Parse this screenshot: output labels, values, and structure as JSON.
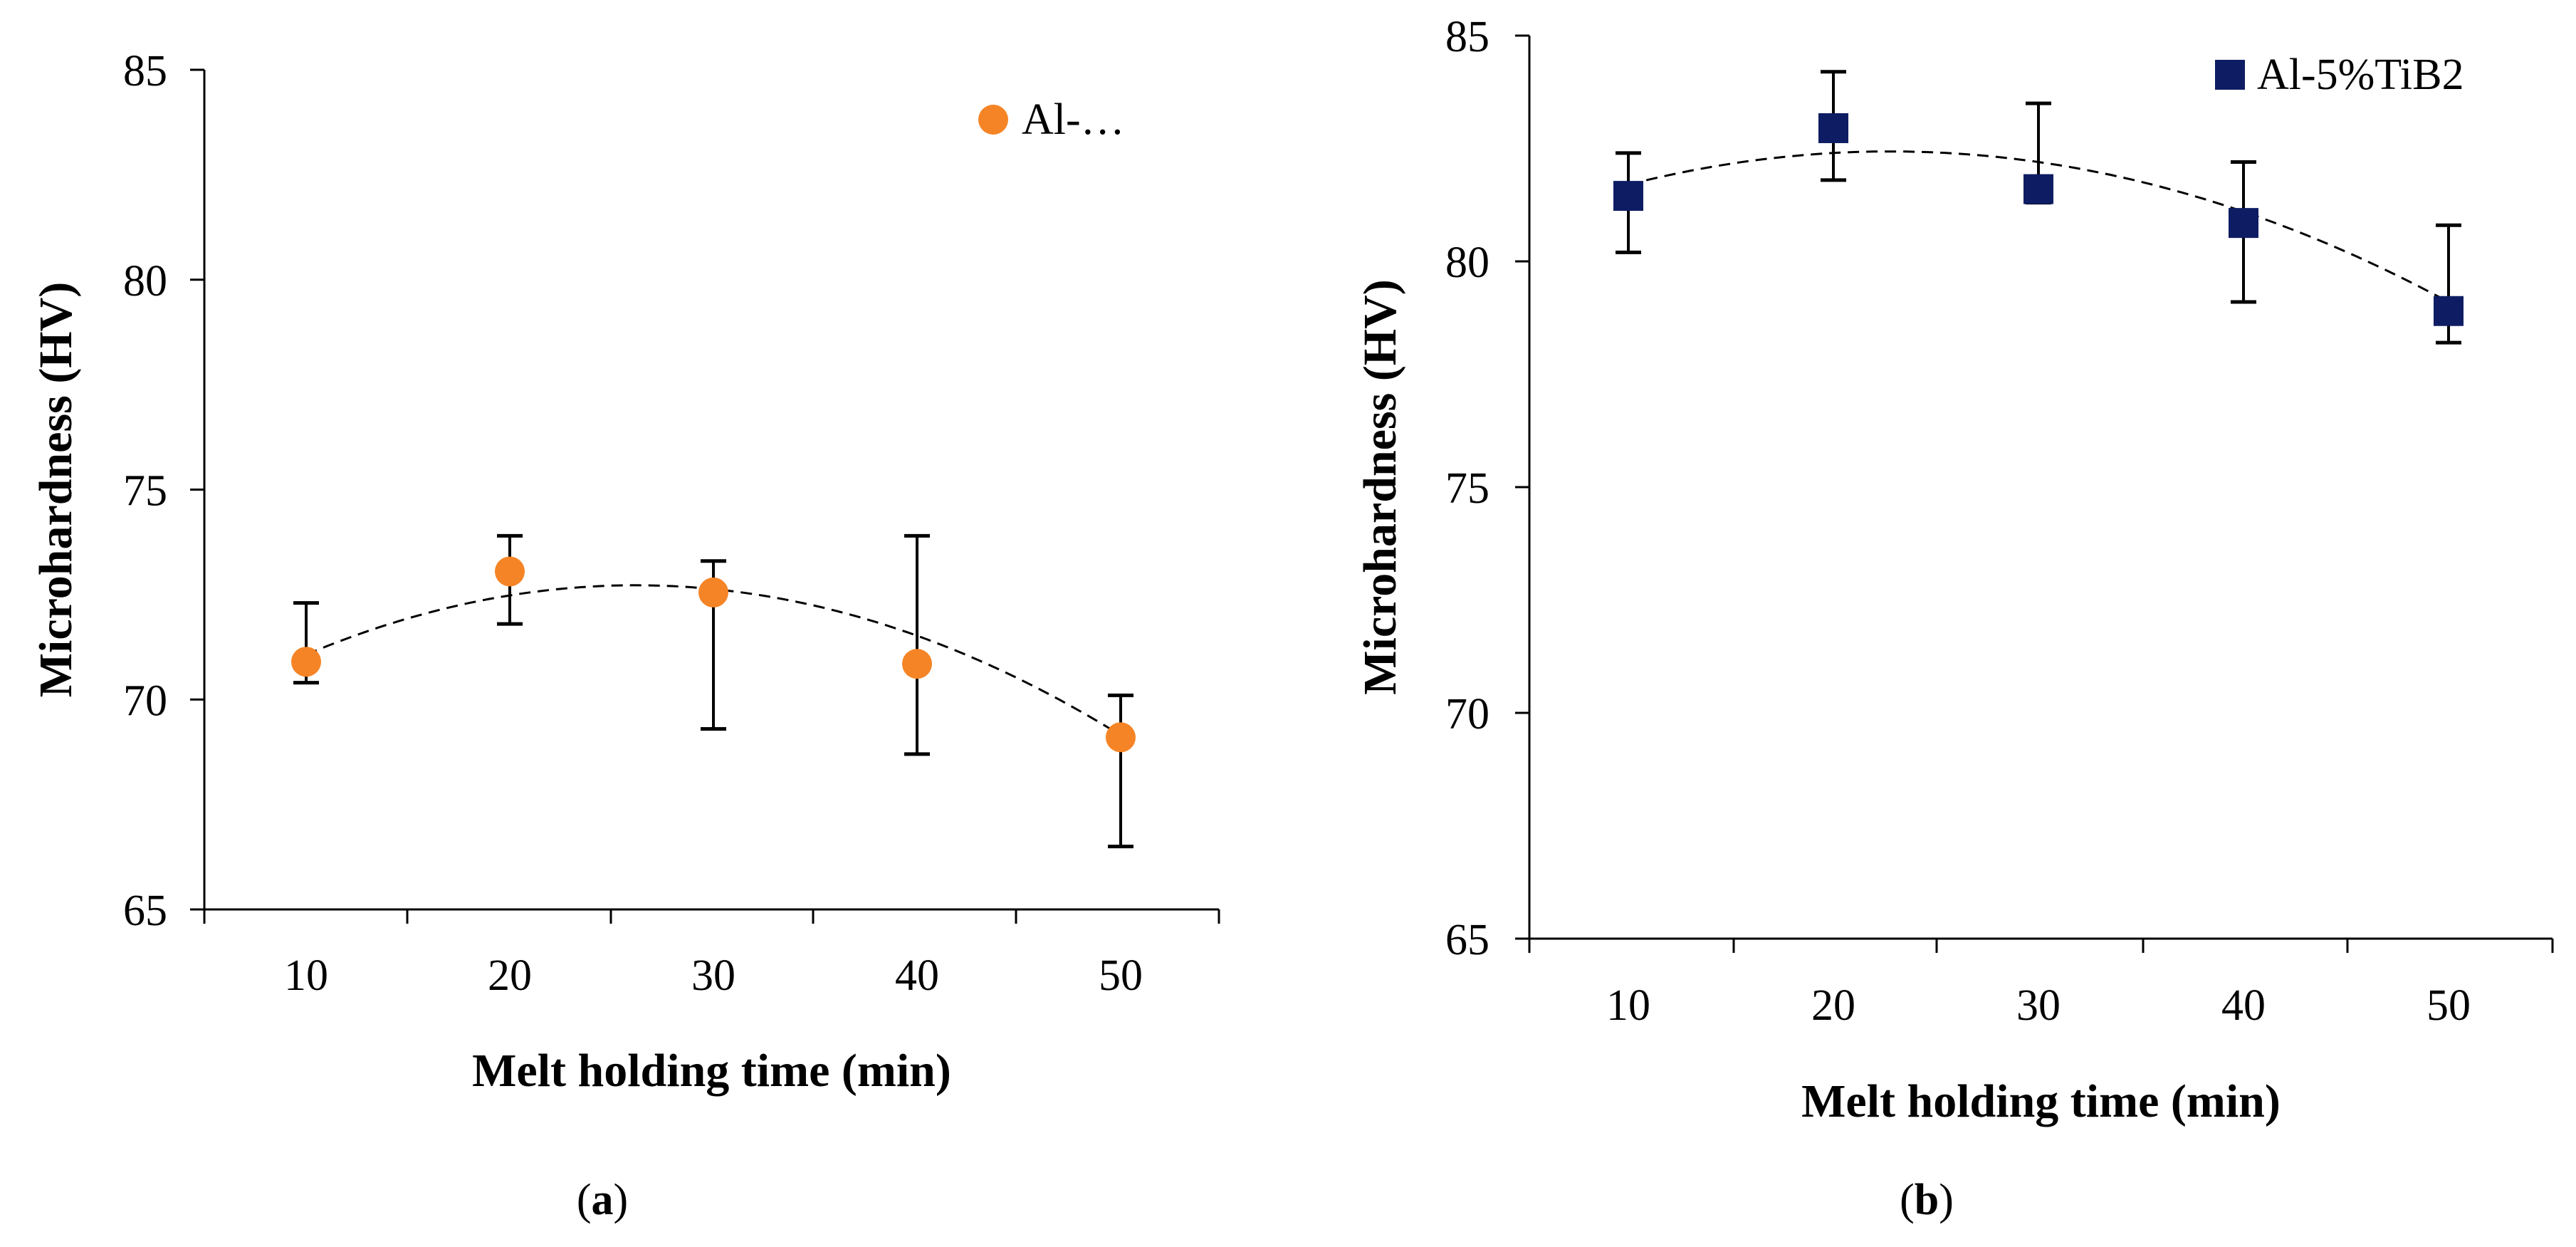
{
  "figure": {
    "panels": [
      "a",
      "b"
    ]
  },
  "chart_data": [
    {
      "type": "scatter",
      "panel_label": "a",
      "caption_open": "(",
      "caption_close": ")",
      "xlabel": "Melt holding time (min)",
      "ylabel": "Microhardness (HV)",
      "x": [
        10,
        20,
        30,
        40,
        50
      ],
      "x_categories": [
        "10",
        "20",
        "30",
        "40",
        "50"
      ],
      "ylim": [
        65,
        85
      ],
      "yticks": [
        65,
        70,
        75,
        80,
        85
      ],
      "legend_position": "top-right",
      "grid": false,
      "series": [
        {
          "name": "Al-…",
          "marker": "circle",
          "color": "#f58426",
          "values": [
            70.9,
            73.05,
            72.55,
            70.85,
            69.1
          ],
          "err_low": [
            70.4,
            71.8,
            69.3,
            68.7,
            66.5
          ],
          "err_high": [
            72.3,
            73.9,
            73.3,
            73.9,
            70.1
          ]
        }
      ],
      "trendline": {
        "style": "dashed",
        "kind": "polynomial-2",
        "coeffs": [
          68.4,
          0.33,
          -0.0063
        ]
      }
    },
    {
      "type": "scatter",
      "panel_label": "b",
      "caption_open": "(",
      "caption_close": ")",
      "xlabel": "Melt holding time (min)",
      "ylabel": "Microhardness (HV)",
      "x": [
        10,
        20,
        30,
        40,
        50
      ],
      "x_categories": [
        "10",
        "20",
        "30",
        "40",
        "50"
      ],
      "ylim": [
        65,
        85
      ],
      "yticks": [
        65,
        70,
        75,
        80,
        85
      ],
      "legend_position": "top-right",
      "grid": false,
      "series": [
        {
          "name": "Al-5%TiB2",
          "marker": "square",
          "color": "#0e1d63",
          "values": [
            81.45,
            82.95,
            81.6,
            80.85,
            78.9
          ],
          "err_low": [
            80.2,
            81.8,
            81.3,
            79.1,
            78.2
          ],
          "err_high": [
            82.4,
            84.2,
            83.5,
            82.2,
            80.8
          ]
        }
      ],
      "trendline": {
        "style": "dashed",
        "kind": "polynomial-2",
        "coeffs": [
          80.1,
          0.205,
          -0.0045
        ]
      }
    }
  ]
}
